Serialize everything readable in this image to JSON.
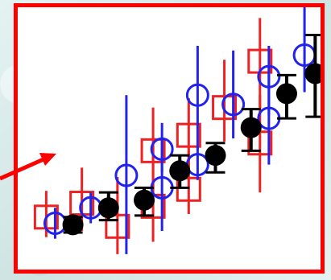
{
  "chart_data": {
    "type": "scatter",
    "title": "",
    "xlabel": "",
    "ylabel": "",
    "grid": false,
    "legend": "none",
    "xlim": [
      0,
      17
    ],
    "ylim": [
      0,
      17
    ],
    "series": [
      {
        "marker": "square",
        "color": "#ee2222",
        "points": [
          {
            "x": 1.6,
            "y": 3.4,
            "lo": 2.1,
            "hi": 5.1
          },
          {
            "x": 3.6,
            "y": 4.3,
            "lo": 2.5,
            "hi": 6.6
          },
          {
            "x": 5.6,
            "y": 2.8,
            "lo": 1.0,
            "hi": 6.0
          },
          {
            "x": 7.6,
            "y": 4.1,
            "lo": 1.8,
            "hi": 8.0
          },
          {
            "x": 7.6,
            "y": 7.7,
            "lo": 5.2,
            "hi": 10.5
          },
          {
            "x": 9.6,
            "y": 5.2,
            "lo": 3.6,
            "hi": 7.7
          },
          {
            "x": 9.6,
            "y": 8.7,
            "lo": 6.6,
            "hi": 11.1
          },
          {
            "x": 11.6,
            "y": 10.5,
            "lo": 8.3,
            "hi": 13.6
          },
          {
            "x": 13.6,
            "y": 8.2,
            "lo": 5.0,
            "hi": 11.3
          },
          {
            "x": 13.6,
            "y": 13.5,
            "lo": 10.5,
            "hi": 16.3
          }
        ]
      },
      {
        "marker": "circle",
        "color": "#2222ee",
        "points": [
          {
            "x": 2.1,
            "y": 3.0,
            "lo": 2.0,
            "hi": 4.0
          },
          {
            "x": 4.1,
            "y": 4.0,
            "lo": 3.0,
            "hi": 5.0
          },
          {
            "x": 6.1,
            "y": 6.1,
            "lo": 1.0,
            "hi": 11.3
          },
          {
            "x": 8.1,
            "y": 5.3,
            "lo": 2.5,
            "hi": 8.6
          },
          {
            "x": 8.1,
            "y": 7.8,
            "lo": 6.3,
            "hi": 9.5
          },
          {
            "x": 10.1,
            "y": 6.8,
            "lo": 5.8,
            "hi": 8.0
          },
          {
            "x": 10.1,
            "y": 11.3,
            "lo": 7.8,
            "hi": 14.5
          },
          {
            "x": 12.1,
            "y": 10.7,
            "lo": 8.5,
            "hi": 14.2
          },
          {
            "x": 14.1,
            "y": 9.8,
            "lo": 6.8,
            "hi": 13.2
          },
          {
            "x": 14.1,
            "y": 12.5,
            "lo": 10.0,
            "hi": 14.5
          },
          {
            "x": 16.1,
            "y": 13.9,
            "lo": 11.5,
            "hi": 17.3
          }
        ]
      },
      {
        "marker": "dot",
        "color": "#000000",
        "points": [
          {
            "x": 3.1,
            "y": 2.9,
            "lo": 2.4,
            "hi": 3.4
          },
          {
            "x": 5.1,
            "y": 4.0,
            "lo": 3.2,
            "hi": 5.0
          },
          {
            "x": 7.1,
            "y": 4.5,
            "lo": 3.5,
            "hi": 5.3
          },
          {
            "x": 9.1,
            "y": 6.4,
            "lo": 5.3,
            "hi": 7.4
          },
          {
            "x": 11.1,
            "y": 7.4,
            "lo": 6.3,
            "hi": 8.2
          },
          {
            "x": 13.1,
            "y": 9.2,
            "lo": 7.7,
            "hi": 10.4
          },
          {
            "x": 15.1,
            "y": 11.4,
            "lo": 9.8,
            "hi": 12.6
          },
          {
            "x": 16.7,
            "y": 12.7,
            "lo": 9.9,
            "hi": 15.2
          }
        ]
      }
    ],
    "annotation": {
      "shape": "arrow",
      "color": "#ff0000"
    }
  }
}
